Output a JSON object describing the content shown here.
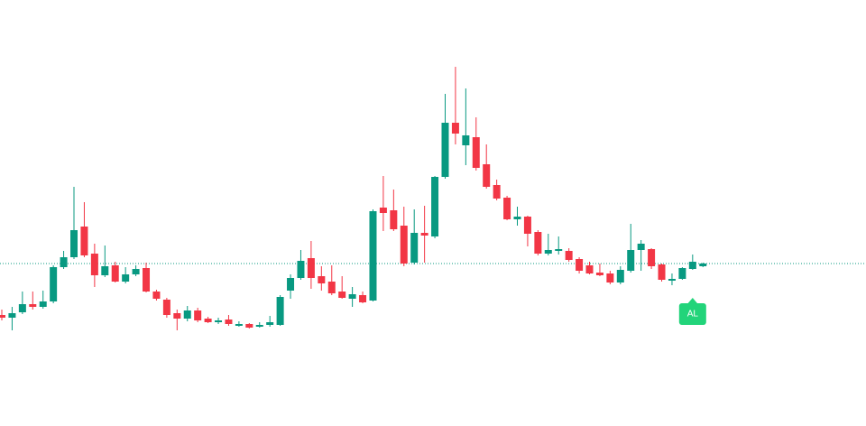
{
  "chart_data": {
    "type": "candlestick",
    "open": [
      123,
      120,
      126,
      135,
      132,
      138,
      176,
      187,
      221,
      191,
      167,
      178,
      160,
      168,
      175,
      149,
      140,
      125,
      119,
      128,
      119,
      115,
      118,
      111,
      113,
      110,
      112,
      112,
      150,
      164,
      186,
      166,
      160,
      149,
      141,
      145,
      139,
      242,
      239,
      222,
      181,
      214,
      210,
      276,
      336,
      311,
      320,
      290,
      267,
      253,
      229,
      232,
      215,
      191,
      194,
      194,
      185,
      178,
      170,
      169,
      159,
      172,
      195,
      196,
      179,
      161,
      163,
      174,
      177
    ],
    "high": [
      129,
      132,
      149,
      149,
      150,
      178,
      194,
      265,
      248,
      202,
      200,
      182,
      176,
      178,
      181,
      151,
      142,
      129,
      133,
      131,
      121,
      120,
      123,
      116,
      114,
      115,
      122,
      145,
      168,
      195,
      205,
      177,
      178,
      166,
      154,
      149,
      240,
      277,
      262,
      243,
      240,
      244,
      277,
      368,
      398,
      374,
      342,
      312,
      273,
      255,
      243,
      233,
      217,
      213,
      210,
      197,
      187,
      182,
      180,
      172,
      177,
      224,
      206,
      197,
      180,
      169,
      176,
      190,
      181
    ],
    "low": [
      117,
      106,
      124,
      129,
      130,
      136,
      174,
      185,
      187,
      154,
      165,
      159,
      158,
      166,
      148,
      139,
      120,
      106,
      116,
      115,
      114,
      113,
      111,
      110,
      108,
      109,
      110,
      111,
      141,
      162,
      152,
      150,
      145,
      141,
      132,
      136,
      138,
      216,
      216,
      177,
      179,
      181,
      208,
      274,
      312,
      289,
      283,
      263,
      250,
      228,
      222,
      199,
      189,
      189,
      190,
      182,
      169,
      168,
      166,
      157,
      157,
      170,
      172,
      174,
      160,
      156,
      162,
      173,
      176
    ],
    "close": [
      120,
      125,
      135,
      132,
      138,
      176,
      187,
      217,
      189,
      167,
      177,
      160,
      168,
      174,
      149,
      141,
      123,
      119,
      128,
      117,
      115,
      117,
      113,
      113,
      109,
      112,
      115,
      143,
      164,
      183,
      164,
      158,
      147,
      142,
      146,
      137,
      238,
      236,
      218,
      180,
      214,
      211,
      276,
      336,
      324,
      322,
      286,
      265,
      252,
      229,
      232,
      213,
      191,
      195,
      196,
      184,
      172,
      169,
      167,
      159,
      173,
      195,
      202,
      177,
      162,
      163,
      175,
      182,
      180
    ],
    "up_color": "#089981",
    "down_color": "#f23645",
    "ylim": [
      0,
      472
    ],
    "price_line": 180,
    "price_line_color": "#089981",
    "signal": {
      "text": "AL",
      "index": 67,
      "color": "#22d47a"
    }
  }
}
